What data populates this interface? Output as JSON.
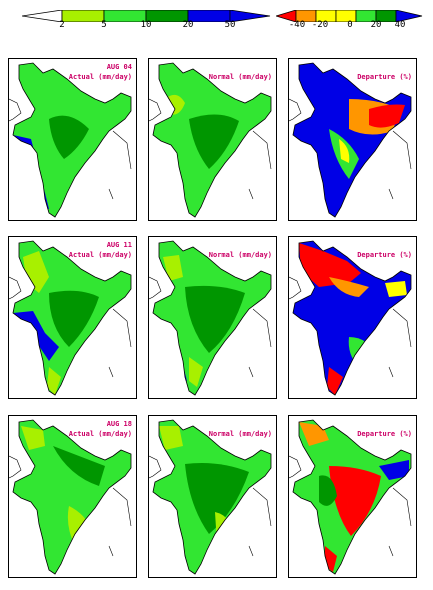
{
  "colorbars": {
    "rainfall": {
      "colors": [
        "#ffffff",
        "#a8f000",
        "#32e632",
        "#009600",
        "#0000e6"
      ],
      "ticks": [
        "2",
        "5",
        "10",
        "20",
        "50"
      ]
    },
    "departure": {
      "colors": [
        "#ff0000",
        "#ff9600",
        "#ffff00",
        "#32e632",
        "#009600",
        "#0000e6"
      ],
      "ticks": [
        "-40",
        "-20",
        "0",
        "20",
        "40"
      ]
    }
  },
  "rows": [
    {
      "date": "AUG 04",
      "actual_label": "Actual (mm/day)",
      "normal_label": "Normal (mm/day)",
      "departure_label": "Departure (%)"
    },
    {
      "date": "AUG 11",
      "actual_label": "Actual (mm/day)",
      "normal_label": "Normal (mm/day)",
      "departure_label": "Departure (%)"
    },
    {
      "date": "AUG 18",
      "actual_label": "Actual (mm/day)",
      "normal_label": "Normal (mm/day)",
      "departure_label": "Departure (%)"
    }
  ]
}
